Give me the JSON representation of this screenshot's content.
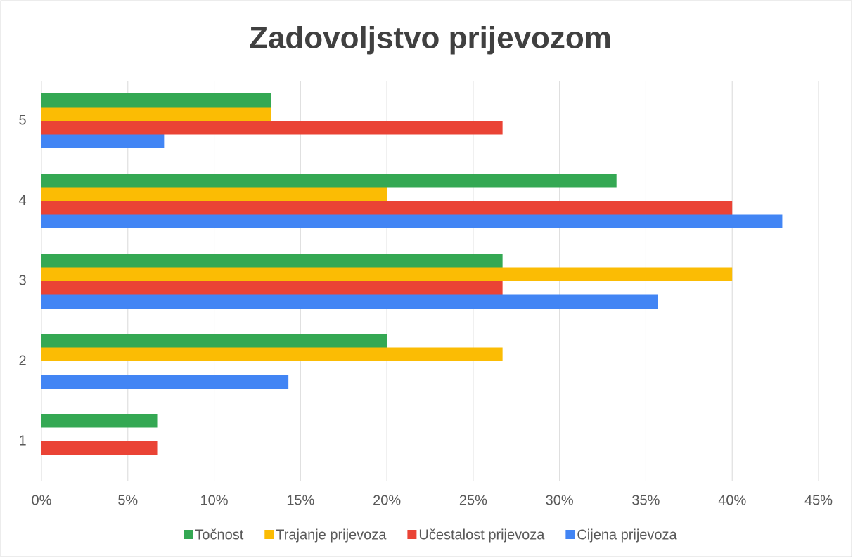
{
  "chart_data": {
    "type": "hbar",
    "title": "Zadovoljstvo prijevozom",
    "categories": [
      "1",
      "2",
      "3",
      "4",
      "5"
    ],
    "series": [
      {
        "name": "Točnost",
        "color": "#34a853",
        "values": [
          6.7,
          20,
          26.7,
          33.3,
          13.3
        ]
      },
      {
        "name": "Trajanje prijevoza",
        "color": "#fbbc04",
        "values": [
          0,
          26.7,
          40,
          20,
          13.3
        ]
      },
      {
        "name": "Učestalost prijevoza",
        "color": "#ea4335",
        "values": [
          6.7,
          0,
          26.7,
          40,
          26.7
        ]
      },
      {
        "name": "Cijena prijevoza",
        "color": "#4285f4",
        "values": [
          0,
          14.3,
          35.7,
          42.9,
          7.1
        ]
      }
    ],
    "xlim": [
      0,
      45
    ],
    "xticks": [
      {
        "value": 0,
        "label": "0%"
      },
      {
        "value": 5,
        "label": "5%"
      },
      {
        "value": 10,
        "label": "10%"
      },
      {
        "value": 15,
        "label": "15%"
      },
      {
        "value": 20,
        "label": "20%"
      },
      {
        "value": 25,
        "label": "25%"
      },
      {
        "value": 30,
        "label": "30%"
      },
      {
        "value": 35,
        "label": "35%"
      },
      {
        "value": 40,
        "label": "40%"
      },
      {
        "value": 45,
        "label": "45%"
      }
    ],
    "grid": true,
    "legend": "bottom"
  }
}
